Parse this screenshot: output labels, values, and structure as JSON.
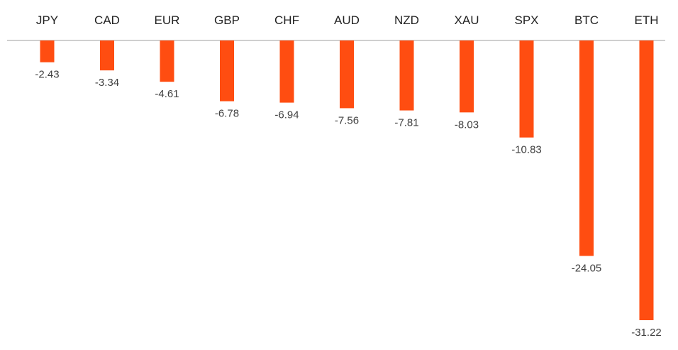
{
  "chart_data": {
    "type": "bar",
    "orientation": "vertical",
    "title": "",
    "xlabel": "",
    "ylabel": "",
    "categories": [
      "JPY",
      "CAD",
      "EUR",
      "GBP",
      "CHF",
      "AUD",
      "NZD",
      "XAU",
      "SPX",
      "BTC",
      "ETH"
    ],
    "values": [
      -2.43,
      -3.34,
      -4.61,
      -6.78,
      -6.94,
      -7.56,
      -7.81,
      -8.03,
      -10.83,
      -24.05,
      -31.22
    ],
    "value_labels": [
      "-2.43",
      "-3.34",
      "-4.61",
      "-6.78",
      "-6.94",
      "-7.56",
      "-7.81",
      "-8.03",
      "-10.83",
      "-24.05",
      "-31.22"
    ],
    "ylim": [
      -31.22,
      0
    ],
    "category_labels_position": "top",
    "value_labels_position": "below-bar",
    "grid": false,
    "legend": false,
    "colors": {
      "bar": "#FF4D11",
      "axis": "#BFBFBF",
      "category_text": "#222222",
      "value_text": "#404040",
      "background": "#FFFFFF"
    }
  }
}
